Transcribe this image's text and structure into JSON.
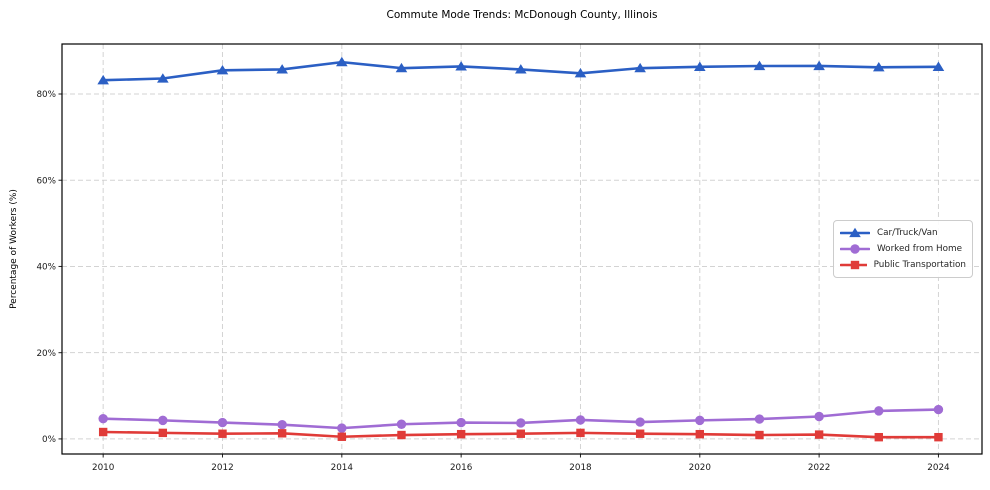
{
  "chart_data": {
    "type": "line",
    "title": "Commute Mode Trends: McDonough County, Illinois",
    "xlabel": "",
    "ylabel": "Percentage of Workers (%)",
    "grid": true,
    "grid_style": "dashed",
    "legend_position": "center-right",
    "background_color": "#ffffff",
    "grid_color": "#cccccc",
    "axis_border_color": "#000000",
    "x": [
      2010,
      2011,
      2012,
      2013,
      2014,
      2015,
      2016,
      2017,
      2018,
      2019,
      2020,
      2021,
      2022,
      2023,
      2024
    ],
    "x_ticks": [
      2010,
      2012,
      2014,
      2016,
      2018,
      2020,
      2022,
      2024
    ],
    "y_ticks": [
      "0%",
      "20%",
      "40%",
      "60%",
      "80%"
    ],
    "y_tick_values": [
      0,
      20,
      40,
      60,
      80
    ],
    "xlim": [
      2009.31,
      2024.73
    ],
    "ylim": [
      -3.5,
      91.6
    ],
    "series": [
      {
        "name": "Car/Truck/Van",
        "color": "#2b5fc4",
        "marker": "triangle",
        "values": [
          83.2,
          83.6,
          85.5,
          85.7,
          87.4,
          86.0,
          86.4,
          85.7,
          84.8,
          86.0,
          86.3,
          86.5,
          86.5,
          86.2,
          86.3
        ]
      },
      {
        "name": "Worked from Home",
        "color": "#a06cd4",
        "marker": "circle",
        "values": [
          4.7,
          4.3,
          3.8,
          3.3,
          2.5,
          3.4,
          3.8,
          3.7,
          4.4,
          3.9,
          4.3,
          4.6,
          5.2,
          6.5,
          6.8
        ]
      },
      {
        "name": "Public Transportation",
        "color": "#e03b38",
        "marker": "square",
        "values": [
          1.6,
          1.4,
          1.2,
          1.3,
          0.5,
          0.9,
          1.1,
          1.2,
          1.4,
          1.2,
          1.1,
          0.9,
          1.0,
          0.4,
          0.4
        ]
      }
    ]
  }
}
